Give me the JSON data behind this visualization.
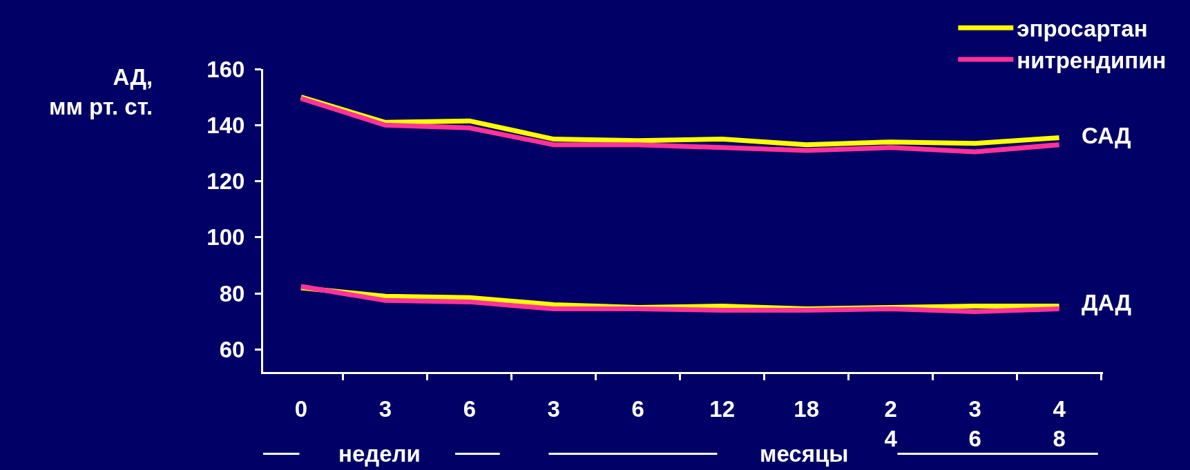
{
  "chart_data": {
    "type": "line",
    "ylabel": "АД,\nмм рт. ст.",
    "categories": [
      "0",
      "3",
      "6",
      "3",
      "6",
      "12",
      "18",
      "2\n4",
      "3\n6",
      "4\n8"
    ],
    "ylim": [
      52,
      160
    ],
    "yticks": [
      60,
      80,
      100,
      120,
      140,
      160
    ],
    "grid": false,
    "legend": "top right",
    "marker": "none",
    "line_style": "solid",
    "series": [
      {
        "name": "эпросартан",
        "color": "#ffff00",
        "values": [
          150,
          141,
          141.5,
          135,
          134.5,
          135,
          133,
          134,
          133.5,
          135.5
        ]
      },
      {
        "name": "нитрендипин",
        "color": "#ff3399",
        "values": [
          149.5,
          140,
          139,
          133,
          133,
          132,
          131,
          132,
          130.5,
          133
        ]
      },
      {
        "color": "#ffff00",
        "values": [
          82,
          79,
          78.5,
          76,
          75,
          75.5,
          74.5,
          75,
          75.5,
          75.5
        ]
      },
      {
        "color": "#ff3399",
        "values": [
          82.5,
          77.5,
          77,
          74.5,
          74.5,
          74,
          74,
          74.5,
          73.5,
          74.5
        ]
      }
    ],
    "annotations": [
      "САД",
      "ДАД",
      "недели",
      "месяцы"
    ]
  }
}
